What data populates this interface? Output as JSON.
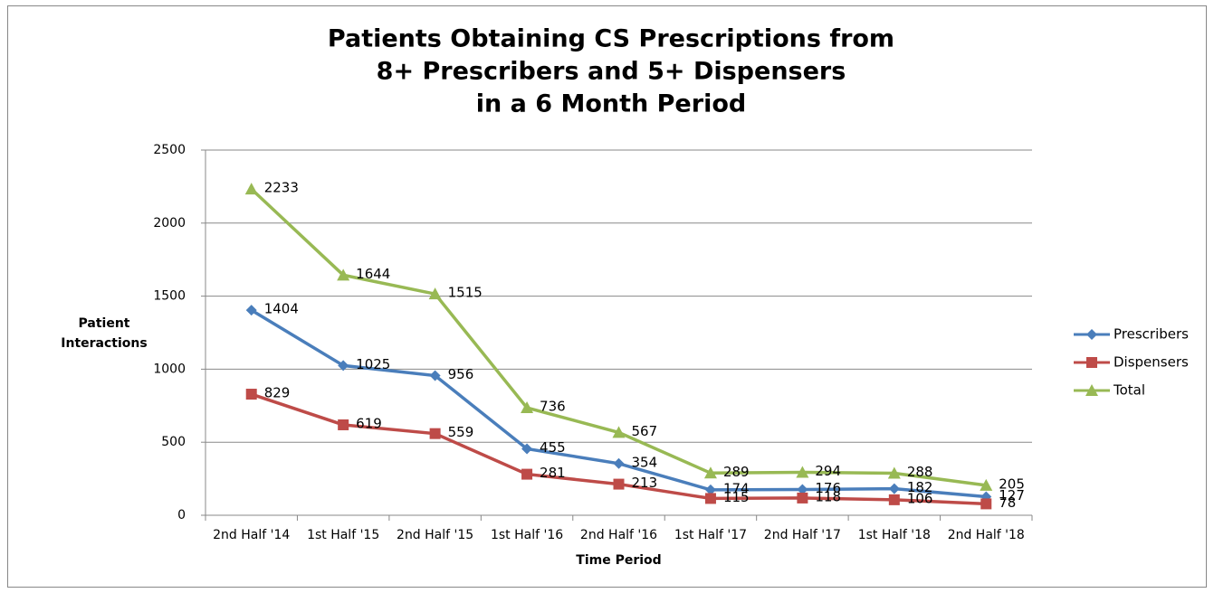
{
  "chart_data": {
    "type": "line",
    "title": [
      "Patients Obtaining CS Prescriptions from",
      "8+ Prescribers and 5+ Dispensers",
      "in a 6 Month Period"
    ],
    "y_axis_label": [
      "Patient",
      "Interactions"
    ],
    "x_axis_label": "Time Period",
    "categories": [
      "2nd Half '14",
      "1st Half '15",
      "2nd Half '15",
      "1st Half '16",
      "2nd Half '16",
      "1st Half '17",
      "2nd Half '17",
      "1st Half '18",
      "2nd Half '18"
    ],
    "series": [
      {
        "name": "Prescribers",
        "color": "#4a7ebb",
        "marker": "diamond",
        "values": [
          1404,
          1025,
          956,
          455,
          354,
          174,
          176,
          182,
          127
        ]
      },
      {
        "name": "Dispensers",
        "color": "#be4b48",
        "marker": "square",
        "values": [
          829,
          619,
          559,
          281,
          213,
          115,
          118,
          106,
          78
        ]
      },
      {
        "name": "Total",
        "color": "#98b954",
        "marker": "triangle",
        "values": [
          2233,
          1644,
          1515,
          736,
          567,
          289,
          294,
          288,
          205
        ]
      }
    ],
    "ylim": [
      0,
      2500
    ],
    "yticks": [
      0,
      500,
      1000,
      1500,
      2000,
      2500
    ],
    "grid": true,
    "legend": "right"
  }
}
